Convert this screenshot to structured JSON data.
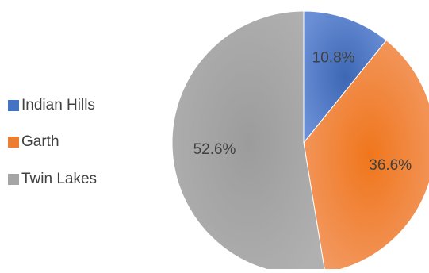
{
  "chart_data": {
    "type": "pie",
    "categories": [
      "Indian Hills",
      "Garth",
      "Twin Lakes"
    ],
    "values": [
      10.8,
      36.6,
      52.6
    ],
    "labels": [
      "10.8%",
      "36.6%",
      "52.6%"
    ],
    "colors": [
      "#4472c4",
      "#ed7d31",
      "#a5a5a5"
    ],
    "start": "12 o'clock, clockwise",
    "legend_position": "left"
  }
}
